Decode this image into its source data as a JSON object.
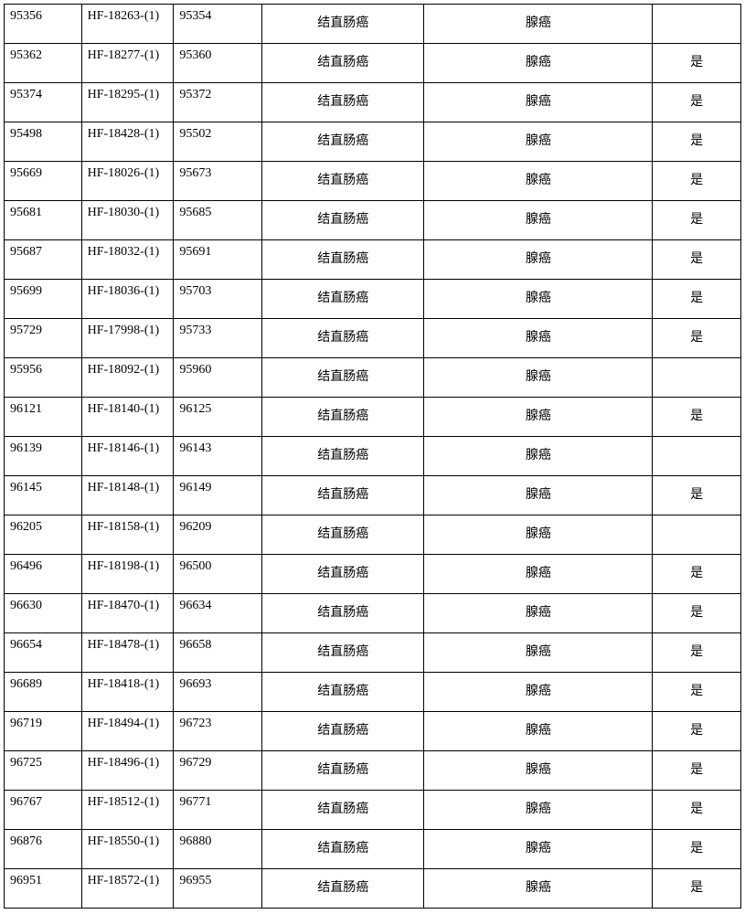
{
  "table": {
    "font_size": 14,
    "border_color": "#000000",
    "background_color": "#ffffff",
    "text_color": "#000000",
    "columns": [
      {
        "key": "id1",
        "width_pct": 10.5,
        "align": "left"
      },
      {
        "key": "code",
        "width_pct": 12.5,
        "align": "left"
      },
      {
        "key": "id2",
        "width_pct": 12.0,
        "align": "left"
      },
      {
        "key": "type1",
        "width_pct": 22.0,
        "align": "center"
      },
      {
        "key": "type2",
        "width_pct": 31.0,
        "align": "center"
      },
      {
        "key": "flag",
        "width_pct": 12.0,
        "align": "center"
      }
    ],
    "rows": [
      {
        "id1": "95356",
        "code": "HF-18263-(1)",
        "id2": "95354",
        "type1": "结直肠癌",
        "type2": "腺癌",
        "flag": ""
      },
      {
        "id1": "95362",
        "code": "HF-18277-(1)",
        "id2": "95360",
        "type1": "结直肠癌",
        "type2": "腺癌",
        "flag": "是"
      },
      {
        "id1": "95374",
        "code": "HF-18295-(1)",
        "id2": "95372",
        "type1": "结直肠癌",
        "type2": "腺癌",
        "flag": "是"
      },
      {
        "id1": "95498",
        "code": "HF-18428-(1)",
        "id2": "95502",
        "type1": "结直肠癌",
        "type2": "腺癌",
        "flag": "是"
      },
      {
        "id1": "95669",
        "code": "HF-18026-(1)",
        "id2": "95673",
        "type1": "结直肠癌",
        "type2": "腺癌",
        "flag": "是"
      },
      {
        "id1": "95681",
        "code": "HF-18030-(1)",
        "id2": "95685",
        "type1": "结直肠癌",
        "type2": "腺癌",
        "flag": "是"
      },
      {
        "id1": "95687",
        "code": "HF-18032-(1)",
        "id2": "95691",
        "type1": "结直肠癌",
        "type2": "腺癌",
        "flag": "是"
      },
      {
        "id1": "95699",
        "code": "HF-18036-(1)",
        "id2": "95703",
        "type1": "结直肠癌",
        "type2": "腺癌",
        "flag": "是"
      },
      {
        "id1": "95729",
        "code": "HF-17998-(1)",
        "id2": "95733",
        "type1": "结直肠癌",
        "type2": "腺癌",
        "flag": "是"
      },
      {
        "id1": "95956",
        "code": "HF-18092-(1)",
        "id2": "95960",
        "type1": "结直肠癌",
        "type2": "腺癌",
        "flag": ""
      },
      {
        "id1": "96121",
        "code": "HF-18140-(1)",
        "id2": "96125",
        "type1": "结直肠癌",
        "type2": "腺癌",
        "flag": "是"
      },
      {
        "id1": "96139",
        "code": "HF-18146-(1)",
        "id2": "96143",
        "type1": "结直肠癌",
        "type2": "腺癌",
        "flag": ""
      },
      {
        "id1": "96145",
        "code": "HF-18148-(1)",
        "id2": "96149",
        "type1": "结直肠癌",
        "type2": "腺癌",
        "flag": "是"
      },
      {
        "id1": "96205",
        "code": "HF-18158-(1)",
        "id2": "96209",
        "type1": "结直肠癌",
        "type2": "腺癌",
        "flag": ""
      },
      {
        "id1": "96496",
        "code": "HF-18198-(1)",
        "id2": "96500",
        "type1": "结直肠癌",
        "type2": "腺癌",
        "flag": "是"
      },
      {
        "id1": "96630",
        "code": "HF-18470-(1)",
        "id2": "96634",
        "type1": "结直肠癌",
        "type2": "腺癌",
        "flag": "是"
      },
      {
        "id1": "96654",
        "code": "HF-18478-(1)",
        "id2": "96658",
        "type1": "结直肠癌",
        "type2": "腺癌",
        "flag": "是"
      },
      {
        "id1": "96689",
        "code": "HF-18418-(1)",
        "id2": "96693",
        "type1": "结直肠癌",
        "type2": "腺癌",
        "flag": "是"
      },
      {
        "id1": "96719",
        "code": "HF-18494-(1)",
        "id2": "96723",
        "type1": "结直肠癌",
        "type2": "腺癌",
        "flag": "是"
      },
      {
        "id1": "96725",
        "code": "HF-18496-(1)",
        "id2": "96729",
        "type1": "结直肠癌",
        "type2": "腺癌",
        "flag": "是"
      },
      {
        "id1": "96767",
        "code": "HF-18512-(1)",
        "id2": "96771",
        "type1": "结直肠癌",
        "type2": "腺癌",
        "flag": "是"
      },
      {
        "id1": "96876",
        "code": "HF-18550-(1)",
        "id2": "96880",
        "type1": "结直肠癌",
        "type2": "腺癌",
        "flag": "是"
      },
      {
        "id1": "96951",
        "code": "HF-18572-(1)",
        "id2": "96955",
        "type1": "结直肠癌",
        "type2": "腺癌",
        "flag": "是"
      }
    ]
  }
}
